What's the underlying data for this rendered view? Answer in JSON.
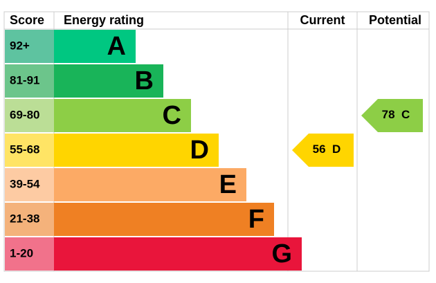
{
  "header": {
    "score": "Score",
    "rating": "Energy rating",
    "current": "Current",
    "potential": "Potential"
  },
  "bands": [
    {
      "score": "92+",
      "letter": "A",
      "color": "#00c781",
      "score_color": "#5ec3a0"
    },
    {
      "score": "81-91",
      "letter": "B",
      "color": "#19b459",
      "score_color": "#6cc58b"
    },
    {
      "score": "69-80",
      "letter": "C",
      "color": "#8dce46",
      "score_color": "#bbde96"
    },
    {
      "score": "55-68",
      "letter": "D",
      "color": "#ffd500",
      "score_color": "#ffe465"
    },
    {
      "score": "39-54",
      "letter": "E",
      "color": "#fcaa65",
      "score_color": "#fdcba3"
    },
    {
      "score": "21-38",
      "letter": "F",
      "color": "#ef8023",
      "score_color": "#f4b27b"
    },
    {
      "score": "1-20",
      "letter": "G",
      "color": "#e9153b",
      "score_color": "#f1728b"
    }
  ],
  "current": {
    "value": 56,
    "letter": "D"
  },
  "potential": {
    "value": 78,
    "letter": "C"
  }
}
